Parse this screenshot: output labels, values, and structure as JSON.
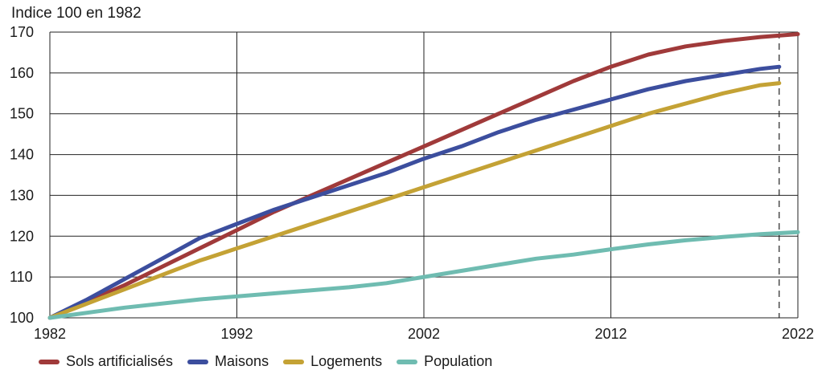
{
  "chart_data": {
    "type": "line",
    "title": "",
    "ylabel": "Indice 100 en 1982",
    "xlabel": "",
    "xlim": [
      1982,
      2022
    ],
    "ylim": [
      100,
      170
    ],
    "x_ticks": [
      "1982",
      "1992",
      "2002",
      "2012",
      "2022"
    ],
    "y_ticks": [
      "100",
      "110",
      "120",
      "130",
      "140",
      "150",
      "160",
      "170"
    ],
    "grid": true,
    "legend_position": "bottom",
    "marker_line_x": 2021,
    "series": [
      {
        "name": "Sols artificialisés",
        "color": "#a03a3a",
        "x": [
          1982,
          1984,
          1986,
          1988,
          1990,
          1992,
          1994,
          1996,
          1998,
          2000,
          2002,
          2004,
          2006,
          2008,
          2010,
          2012,
          2014,
          2016,
          2018,
          2020,
          2022
        ],
        "y": [
          100,
          104,
          108,
          112.5,
          117,
          121.5,
          126,
          130,
          134,
          138,
          142,
          146,
          150,
          154,
          158,
          161.5,
          164.5,
          166.5,
          167.8,
          168.8,
          169.5
        ]
      },
      {
        "name": "Maisons",
        "color": "#3c4e9e",
        "x": [
          1982,
          1984,
          1986,
          1988,
          1990,
          1992,
          1994,
          1996,
          1998,
          2000,
          2002,
          2004,
          2006,
          2008,
          2010,
          2012,
          2014,
          2016,
          2018,
          2020,
          2021
        ],
        "y": [
          100,
          104.5,
          109.5,
          114.5,
          119.5,
          123,
          126.5,
          129.5,
          132.5,
          135.5,
          139,
          142,
          145.5,
          148.5,
          151,
          153.5,
          156,
          158,
          159.5,
          161,
          161.5
        ]
      },
      {
        "name": "Logements",
        "color": "#c4a235",
        "x": [
          1982,
          1984,
          1986,
          1988,
          1990,
          1992,
          1994,
          1996,
          1998,
          2000,
          2002,
          2004,
          2006,
          2008,
          2010,
          2012,
          2014,
          2016,
          2018,
          2020,
          2021
        ],
        "y": [
          100,
          103.5,
          107,
          110.5,
          114,
          117,
          120,
          123,
          126,
          129,
          132,
          135,
          138,
          141,
          144,
          147,
          150,
          152.5,
          155,
          157,
          157.5
        ]
      },
      {
        "name": "Population",
        "color": "#6fbcb1",
        "x": [
          1982,
          1986,
          1990,
          1994,
          1998,
          2000,
          2002,
          2004,
          2006,
          2008,
          2010,
          2012,
          2014,
          2016,
          2018,
          2020,
          2022
        ],
        "y": [
          100,
          102.5,
          104.5,
          106,
          107.5,
          108.5,
          110,
          111.5,
          113,
          114.5,
          115.5,
          116.8,
          118,
          119,
          119.8,
          120.5,
          121
        ]
      }
    ]
  }
}
